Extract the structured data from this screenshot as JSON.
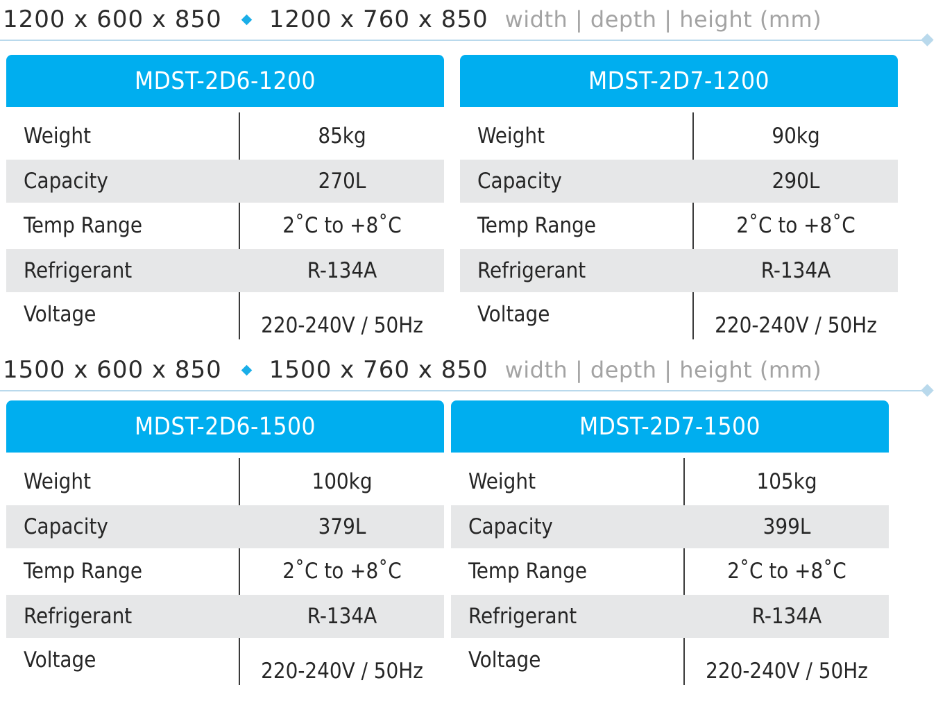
{
  "sections": [
    {
      "dims_a": "1200 x 600 x 850",
      "dims_b": "1200 x 760 x 850",
      "dims_unit": "width | depth | height (mm)",
      "models": [
        {
          "name": "MDST-2D6-1200",
          "specs": [
            {
              "label": "Weight",
              "value": "85kg"
            },
            {
              "label": "Capacity",
              "value": "270L"
            },
            {
              "label": "Temp Range",
              "value": "2˚C to +8˚C"
            },
            {
              "label": "Refrigerant",
              "value": "R-134A"
            },
            {
              "label": "Voltage",
              "value": "220-240V / 50Hz"
            }
          ]
        },
        {
          "name": "MDST-2D7-1200",
          "specs": [
            {
              "label": "Weight",
              "value": "90kg"
            },
            {
              "label": "Capacity",
              "value": "290L"
            },
            {
              "label": "Temp Range",
              "value": "2˚C to +8˚C"
            },
            {
              "label": "Refrigerant",
              "value": "R-134A"
            },
            {
              "label": "Voltage",
              "value": "220-240V / 50Hz"
            }
          ]
        }
      ]
    },
    {
      "dims_a": "1500 x 600 x 850",
      "dims_b": "1500 x 760 x 850",
      "dims_unit": "width | depth | height (mm)",
      "models": [
        {
          "name": "MDST-2D6-1500",
          "specs": [
            {
              "label": "Weight",
              "value": "100kg"
            },
            {
              "label": "Capacity",
              "value": "379L"
            },
            {
              "label": "Temp Range",
              "value": "2˚C to +8˚C"
            },
            {
              "label": "Refrigerant",
              "value": "R-134A"
            },
            {
              "label": "Voltage",
              "value": "220-240V / 50Hz"
            }
          ]
        },
        {
          "name": "MDST-2D7-1500",
          "specs": [
            {
              "label": "Weight",
              "value": "105kg"
            },
            {
              "label": "Capacity",
              "value": "399L"
            },
            {
              "label": "Temp Range",
              "value": "2˚C to +8˚C"
            },
            {
              "label": "Refrigerant",
              "value": "R-134A"
            },
            {
              "label": "Voltage",
              "value": "220-240V / 50Hz"
            }
          ]
        }
      ]
    }
  ],
  "colors": {
    "header_bg": "#00aeef",
    "header_text": "#ffffff",
    "shade_row": "#e6e7e8",
    "diamond": "#1aaee8",
    "rule": "#b9d9ec",
    "unit_text": "#a3a3a3"
  }
}
